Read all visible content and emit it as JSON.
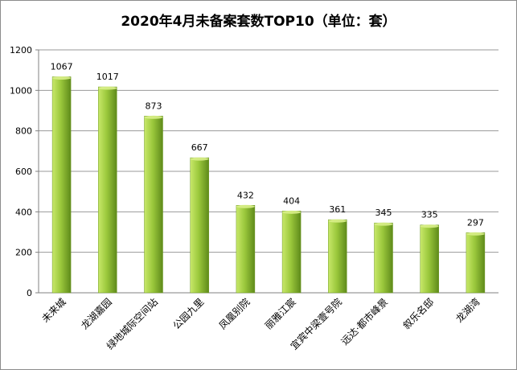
{
  "chart_data": {
    "type": "bar",
    "title": "2020年4月未备案套数TOP10（单位：套）",
    "categories": [
      "未来城",
      "龙湖嘉园",
      "绿地城际空间站",
      "公园九里",
      "凤凰别院",
      "丽雅江宸",
      "宜宾中梁壹号院",
      "远达·都市峰景",
      "叙乐名邸",
      "龙湖湾"
    ],
    "values": [
      1067,
      1017,
      873,
      667,
      432,
      404,
      361,
      345,
      335,
      297
    ],
    "ylim": [
      0,
      1200
    ],
    "yticks": [
      0,
      200,
      400,
      600,
      800,
      1000,
      1200
    ],
    "grid": true,
    "legend": "none",
    "colors": {
      "bar_light": "#c8e86a",
      "bar_mid": "#9bc83c",
      "bar_dark": "#5e8a1a",
      "grid": "#9a9a9a"
    }
  }
}
